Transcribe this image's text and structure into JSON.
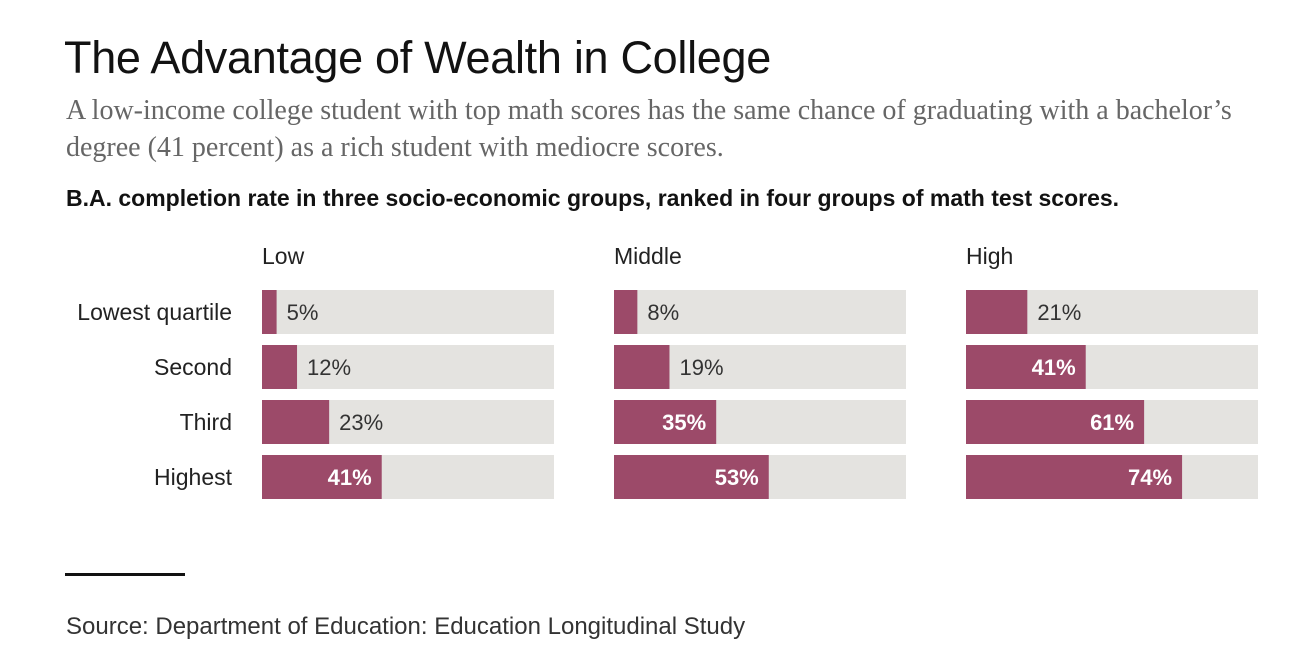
{
  "title": "The Advantage of Wealth in College",
  "subtitle": "A low-income college student with top math scores has the same chance of graduating with a bachelor’s degree (41 percent) as a rich student with mediocre scores.",
  "chart_heading": "B.A. completion rate in three socio-economic groups, ranked in four groups of math test scores.",
  "source": "Source: Department of Education: Education Longitudinal Study",
  "colors": {
    "bar": "#9c4a69",
    "track": "#e4e3e0",
    "label_inside": "#ffffff",
    "label_outside": "#333333",
    "text": "#222222"
  },
  "chart_data": {
    "type": "bar",
    "orientation": "horizontal",
    "layout": "small-multiples",
    "unit": "%",
    "xlim": [
      0,
      100
    ],
    "categories": [
      "Lowest quartile",
      "Second",
      "Third",
      "Highest"
    ],
    "series": [
      {
        "name": "Low",
        "values": [
          5,
          12,
          23,
          41
        ]
      },
      {
        "name": "Middle",
        "values": [
          8,
          19,
          35,
          53
        ]
      },
      {
        "name": "High",
        "values": [
          21,
          41,
          61,
          74
        ]
      }
    ],
    "value_labels": [
      [
        "5%",
        "12%",
        "23%",
        "41%"
      ],
      [
        "8%",
        "19%",
        "35%",
        "53%"
      ],
      [
        "21%",
        "41%",
        "61%",
        "74%"
      ]
    ]
  }
}
